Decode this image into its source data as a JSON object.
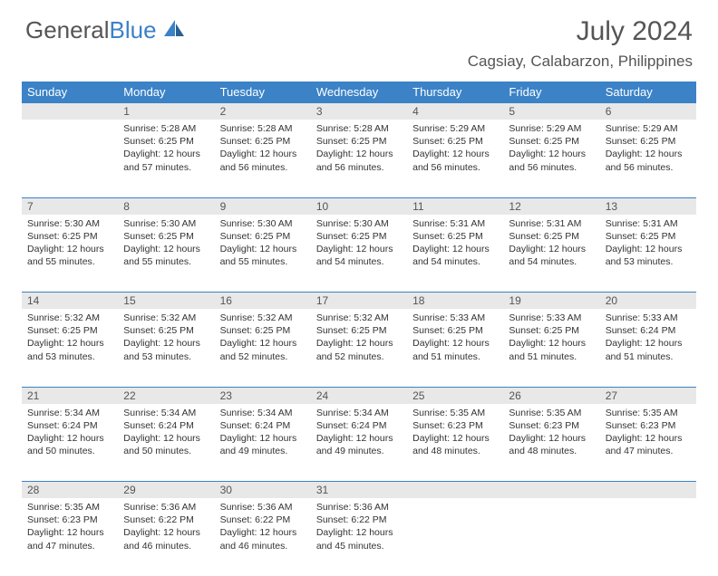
{
  "brand": {
    "part1": "General",
    "part2": "Blue"
  },
  "title": "July 2024",
  "location": "Cagsiay, Calabarzon, Philippines",
  "colors": {
    "header_bg": "#3b82c7",
    "daynum_bg": "#e8e8e8",
    "text": "#333333",
    "title_text": "#555555"
  },
  "weekdays": [
    "Sunday",
    "Monday",
    "Tuesday",
    "Wednesday",
    "Thursday",
    "Friday",
    "Saturday"
  ],
  "weeks": [
    {
      "nums": [
        "",
        "1",
        "2",
        "3",
        "4",
        "5",
        "6"
      ],
      "cells": [
        null,
        {
          "sr": "Sunrise: 5:28 AM",
          "ss": "Sunset: 6:25 PM",
          "d1": "Daylight: 12 hours",
          "d2": "and 57 minutes."
        },
        {
          "sr": "Sunrise: 5:28 AM",
          "ss": "Sunset: 6:25 PM",
          "d1": "Daylight: 12 hours",
          "d2": "and 56 minutes."
        },
        {
          "sr": "Sunrise: 5:28 AM",
          "ss": "Sunset: 6:25 PM",
          "d1": "Daylight: 12 hours",
          "d2": "and 56 minutes."
        },
        {
          "sr": "Sunrise: 5:29 AM",
          "ss": "Sunset: 6:25 PM",
          "d1": "Daylight: 12 hours",
          "d2": "and 56 minutes."
        },
        {
          "sr": "Sunrise: 5:29 AM",
          "ss": "Sunset: 6:25 PM",
          "d1": "Daylight: 12 hours",
          "d2": "and 56 minutes."
        },
        {
          "sr": "Sunrise: 5:29 AM",
          "ss": "Sunset: 6:25 PM",
          "d1": "Daylight: 12 hours",
          "d2": "and 56 minutes."
        }
      ]
    },
    {
      "nums": [
        "7",
        "8",
        "9",
        "10",
        "11",
        "12",
        "13"
      ],
      "cells": [
        {
          "sr": "Sunrise: 5:30 AM",
          "ss": "Sunset: 6:25 PM",
          "d1": "Daylight: 12 hours",
          "d2": "and 55 minutes."
        },
        {
          "sr": "Sunrise: 5:30 AM",
          "ss": "Sunset: 6:25 PM",
          "d1": "Daylight: 12 hours",
          "d2": "and 55 minutes."
        },
        {
          "sr": "Sunrise: 5:30 AM",
          "ss": "Sunset: 6:25 PM",
          "d1": "Daylight: 12 hours",
          "d2": "and 55 minutes."
        },
        {
          "sr": "Sunrise: 5:30 AM",
          "ss": "Sunset: 6:25 PM",
          "d1": "Daylight: 12 hours",
          "d2": "and 54 minutes."
        },
        {
          "sr": "Sunrise: 5:31 AM",
          "ss": "Sunset: 6:25 PM",
          "d1": "Daylight: 12 hours",
          "d2": "and 54 minutes."
        },
        {
          "sr": "Sunrise: 5:31 AM",
          "ss": "Sunset: 6:25 PM",
          "d1": "Daylight: 12 hours",
          "d2": "and 54 minutes."
        },
        {
          "sr": "Sunrise: 5:31 AM",
          "ss": "Sunset: 6:25 PM",
          "d1": "Daylight: 12 hours",
          "d2": "and 53 minutes."
        }
      ]
    },
    {
      "nums": [
        "14",
        "15",
        "16",
        "17",
        "18",
        "19",
        "20"
      ],
      "cells": [
        {
          "sr": "Sunrise: 5:32 AM",
          "ss": "Sunset: 6:25 PM",
          "d1": "Daylight: 12 hours",
          "d2": "and 53 minutes."
        },
        {
          "sr": "Sunrise: 5:32 AM",
          "ss": "Sunset: 6:25 PM",
          "d1": "Daylight: 12 hours",
          "d2": "and 53 minutes."
        },
        {
          "sr": "Sunrise: 5:32 AM",
          "ss": "Sunset: 6:25 PM",
          "d1": "Daylight: 12 hours",
          "d2": "and 52 minutes."
        },
        {
          "sr": "Sunrise: 5:32 AM",
          "ss": "Sunset: 6:25 PM",
          "d1": "Daylight: 12 hours",
          "d2": "and 52 minutes."
        },
        {
          "sr": "Sunrise: 5:33 AM",
          "ss": "Sunset: 6:25 PM",
          "d1": "Daylight: 12 hours",
          "d2": "and 51 minutes."
        },
        {
          "sr": "Sunrise: 5:33 AM",
          "ss": "Sunset: 6:25 PM",
          "d1": "Daylight: 12 hours",
          "d2": "and 51 minutes."
        },
        {
          "sr": "Sunrise: 5:33 AM",
          "ss": "Sunset: 6:24 PM",
          "d1": "Daylight: 12 hours",
          "d2": "and 51 minutes."
        }
      ]
    },
    {
      "nums": [
        "21",
        "22",
        "23",
        "24",
        "25",
        "26",
        "27"
      ],
      "cells": [
        {
          "sr": "Sunrise: 5:34 AM",
          "ss": "Sunset: 6:24 PM",
          "d1": "Daylight: 12 hours",
          "d2": "and 50 minutes."
        },
        {
          "sr": "Sunrise: 5:34 AM",
          "ss": "Sunset: 6:24 PM",
          "d1": "Daylight: 12 hours",
          "d2": "and 50 minutes."
        },
        {
          "sr": "Sunrise: 5:34 AM",
          "ss": "Sunset: 6:24 PM",
          "d1": "Daylight: 12 hours",
          "d2": "and 49 minutes."
        },
        {
          "sr": "Sunrise: 5:34 AM",
          "ss": "Sunset: 6:24 PM",
          "d1": "Daylight: 12 hours",
          "d2": "and 49 minutes."
        },
        {
          "sr": "Sunrise: 5:35 AM",
          "ss": "Sunset: 6:23 PM",
          "d1": "Daylight: 12 hours",
          "d2": "and 48 minutes."
        },
        {
          "sr": "Sunrise: 5:35 AM",
          "ss": "Sunset: 6:23 PM",
          "d1": "Daylight: 12 hours",
          "d2": "and 48 minutes."
        },
        {
          "sr": "Sunrise: 5:35 AM",
          "ss": "Sunset: 6:23 PM",
          "d1": "Daylight: 12 hours",
          "d2": "and 47 minutes."
        }
      ]
    },
    {
      "nums": [
        "28",
        "29",
        "30",
        "31",
        "",
        "",
        ""
      ],
      "cells": [
        {
          "sr": "Sunrise: 5:35 AM",
          "ss": "Sunset: 6:23 PM",
          "d1": "Daylight: 12 hours",
          "d2": "and 47 minutes."
        },
        {
          "sr": "Sunrise: 5:36 AM",
          "ss": "Sunset: 6:22 PM",
          "d1": "Daylight: 12 hours",
          "d2": "and 46 minutes."
        },
        {
          "sr": "Sunrise: 5:36 AM",
          "ss": "Sunset: 6:22 PM",
          "d1": "Daylight: 12 hours",
          "d2": "and 46 minutes."
        },
        {
          "sr": "Sunrise: 5:36 AM",
          "ss": "Sunset: 6:22 PM",
          "d1": "Daylight: 12 hours",
          "d2": "and 45 minutes."
        },
        null,
        null,
        null
      ]
    }
  ]
}
